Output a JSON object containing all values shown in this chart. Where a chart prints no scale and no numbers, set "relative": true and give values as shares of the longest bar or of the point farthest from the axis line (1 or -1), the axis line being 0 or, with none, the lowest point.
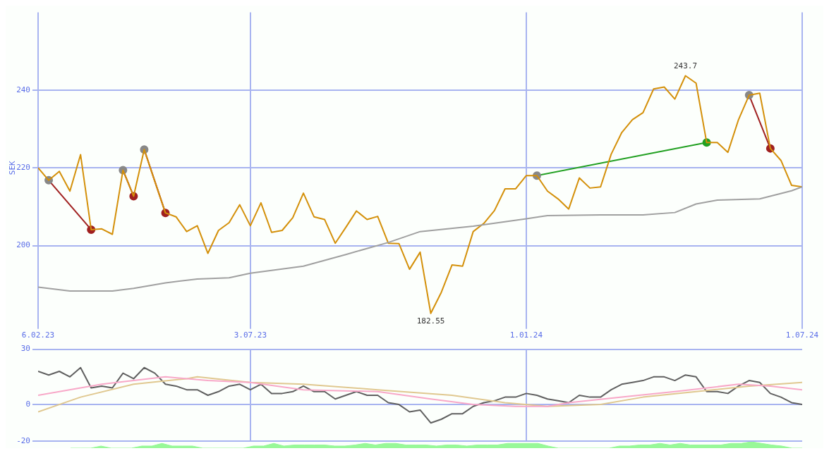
{
  "chart_data": [
    {
      "type": "line",
      "ylabel": "SEK",
      "x": [
        "2023-02-13",
        "2023-02-20",
        "2023-02-27",
        "2023-03-06",
        "2023-03-13",
        "2023-03-20",
        "2023-03-27",
        "2023-04-03",
        "2023-04-10",
        "2023-04-17",
        "2023-04-24",
        "2023-05-01",
        "2023-05-08",
        "2023-05-15",
        "2023-05-22",
        "2023-05-29",
        "2023-06-05",
        "2023-06-12",
        "2023-06-19",
        "2023-06-26",
        "2023-07-03",
        "2023-07-10",
        "2023-07-17",
        "2023-07-24",
        "2023-07-31",
        "2023-08-07",
        "2023-08-14",
        "2023-08-21",
        "2023-08-28",
        "2023-09-04",
        "2023-09-11",
        "2023-09-18",
        "2023-09-25",
        "2023-10-02",
        "2023-10-09",
        "2023-10-16",
        "2023-10-23",
        "2023-10-30",
        "2023-11-06",
        "2023-11-13",
        "2023-11-20",
        "2023-11-27",
        "2023-12-04",
        "2023-12-11",
        "2023-12-18",
        "2023-12-25",
        "2024-01-01",
        "2024-01-08",
        "2024-01-15",
        "2024-01-22",
        "2024-01-29",
        "2024-02-05",
        "2024-02-12",
        "2024-02-19",
        "2024-02-26",
        "2024-03-04",
        "2024-03-11",
        "2024-03-18",
        "2024-03-25",
        "2024-04-01",
        "2024-04-08",
        "2024-04-15",
        "2024-04-22",
        "2024-04-29",
        "2024-05-06",
        "2024-05-13",
        "2024-05-20",
        "2024-05-27",
        "2024-06-03",
        "2024-06-10",
        "2024-06-17",
        "2024-06-24",
        "2024-07-01"
      ],
      "series": [
        {
          "color": "#a0a0a0",
          "x": [
            "2023-02-13",
            "2023-03-06",
            "2023-04-03",
            "2023-04-17",
            "2023-05-08",
            "2023-05-29",
            "2023-06-19",
            "2023-07-03",
            "2023-08-07",
            "2023-09-04",
            "2023-10-02",
            "2023-10-23",
            "2023-11-27",
            "2024-01-01",
            "2024-01-15",
            "2024-02-19",
            "2024-03-18",
            "2024-04-08",
            "2024-04-22",
            "2024-05-06",
            "2024-06-03",
            "2024-06-24",
            "2024-07-01"
          ],
          "values": [
            189.3,
            188.3,
            188.3,
            189.0,
            190.4,
            191.4,
            191.7,
            192.9,
            194.7,
            197.7,
            200.8,
            203.6,
            205.0,
            206.9,
            207.7,
            207.9,
            207.9,
            208.5,
            210.7,
            211.7,
            212.0,
            214.1,
            215.1
          ]
        },
        {
          "color": "#d4900a",
          "values": [
            220.0,
            216.8,
            219.1,
            214.0,
            223.4,
            204.1,
            204.3,
            202.9,
            219.4,
            212.7,
            224.7,
            216.5,
            208.4,
            207.4,
            203.6,
            205.1,
            198.0,
            203.9,
            205.9,
            210.5,
            205.1,
            211.0,
            203.4,
            203.9,
            207.2,
            213.5,
            207.4,
            206.7,
            200.6,
            204.7,
            208.9,
            206.7,
            207.5,
            200.6,
            200.5,
            193.9,
            198.3,
            182.55,
            188.0,
            195.0,
            194.7,
            203.6,
            205.7,
            209.0,
            214.6,
            214.6,
            218.0,
            218.0,
            214.0,
            212.0,
            209.4,
            217.4,
            214.8,
            215.1,
            223.5,
            229.1,
            232.4,
            234.2,
            240.3,
            240.8,
            237.7,
            243.7,
            241.8,
            226.5,
            226.5,
            224.0,
            232.4,
            238.7,
            239.2,
            225.0,
            221.9,
            215.5,
            215.1
          ]
        },
        {
          "color": "#a02020",
          "marker": "circle",
          "colors": [
            "#888888",
            "#a02020"
          ],
          "x": [
            "2023-02-20",
            "2023-03-20"
          ],
          "values": [
            216.8,
            204.1
          ]
        },
        {
          "color": "#a02020",
          "marker": "circle",
          "colors": [
            "#888888",
            "#a02020"
          ],
          "x": [
            "2023-04-10",
            "2023-04-17"
          ],
          "values": [
            219.4,
            212.7
          ]
        },
        {
          "color": "#a02020",
          "marker": "circle",
          "colors": [
            "#888888",
            "#a02020"
          ],
          "x": [
            "2023-04-24",
            "2023-05-08"
          ],
          "values": [
            224.7,
            208.4
          ]
        },
        {
          "color": "#22a022",
          "marker": "circle",
          "colors": [
            "#888888",
            "#22a022"
          ],
          "x": [
            "2024-01-08",
            "2024-04-29"
          ],
          "values": [
            218.0,
            226.5
          ]
        },
        {
          "color": "#a02020",
          "marker": "circle",
          "colors": [
            "#888888",
            "#a02020"
          ],
          "x": [
            "2024-05-27",
            "2024-06-10"
          ],
          "values": [
            238.7,
            225.0
          ]
        }
      ],
      "xlim": [
        "2023-02-13",
        "2024-07-01"
      ],
      "xticks": [
        {
          "value": "2023-02-13",
          "label": "6.02.23"
        },
        {
          "value": "2023-07-03",
          "label": "3.07.23"
        },
        {
          "value": "2024-01-01",
          "label": "1.01.24"
        },
        {
          "value": "2024-07-01",
          "label": "1.07.24"
        }
      ],
      "ylim": [
        180,
        260
      ],
      "yticks": [
        200,
        220,
        240
      ],
      "grid": true,
      "marker": "none",
      "annotations": [
        {
          "text": "243.7",
          "x": "2024-04-15",
          "y": 243.7
        },
        {
          "text": "182.55",
          "x": "2023-10-30",
          "y": 182.55
        }
      ]
    },
    {
      "type": "line",
      "x": [
        "2023-02-13",
        "2023-02-20",
        "2023-02-27",
        "2023-03-06",
        "2023-03-13",
        "2023-03-20",
        "2023-03-27",
        "2023-04-03",
        "2023-04-10",
        "2023-04-17",
        "2023-04-24",
        "2023-05-01",
        "2023-05-08",
        "2023-05-15",
        "2023-05-22",
        "2023-05-29",
        "2023-06-05",
        "2023-06-12",
        "2023-06-19",
        "2023-06-26",
        "2023-07-03",
        "2023-07-10",
        "2023-07-17",
        "2023-07-24",
        "2023-07-31",
        "2023-08-07",
        "2023-08-14",
        "2023-08-21",
        "2023-08-28",
        "2023-09-04",
        "2023-09-11",
        "2023-09-18",
        "2023-09-25",
        "2023-10-02",
        "2023-10-09",
        "2023-10-16",
        "2023-10-23",
        "2023-10-30",
        "2023-11-06",
        "2023-11-13",
        "2023-11-20",
        "2023-11-27",
        "2023-12-04",
        "2023-12-11",
        "2023-12-18",
        "2023-12-25",
        "2024-01-01",
        "2024-01-08",
        "2024-01-15",
        "2024-01-22",
        "2024-01-29",
        "2024-02-05",
        "2024-02-12",
        "2024-02-19",
        "2024-02-26",
        "2024-03-04",
        "2024-03-11",
        "2024-03-18",
        "2024-03-25",
        "2024-04-01",
        "2024-04-08",
        "2024-04-15",
        "2024-04-22",
        "2024-04-29",
        "2024-05-06",
        "2024-05-13",
        "2024-05-20",
        "2024-05-27",
        "2024-06-03",
        "2024-06-10",
        "2024-06-17",
        "2024-06-24",
        "2024-07-01"
      ],
      "series": [
        {
          "color": "#f8a8c8",
          "x": [
            "2023-02-13",
            "2023-03-27",
            "2023-05-08",
            "2023-06-05",
            "2023-07-03",
            "2023-08-07",
            "2023-09-25",
            "2023-10-30",
            "2023-11-27",
            "2023-12-25",
            "2024-01-15",
            "2024-01-29",
            "2024-03-04",
            "2024-04-08",
            "2024-05-20",
            "2024-06-10",
            "2024-07-01"
          ],
          "values": [
            5,
            11,
            15,
            13,
            12,
            8,
            7,
            3,
            0,
            -1,
            -1,
            1,
            4,
            7,
            11,
            10,
            8
          ]
        },
        {
          "color": "#e0c890",
          "x": [
            "2023-02-13",
            "2023-03-13",
            "2023-04-17",
            "2023-05-22",
            "2023-05-29",
            "2023-07-03",
            "2023-08-07",
            "2023-09-25",
            "2023-11-13",
            "2023-12-18",
            "2024-01-15",
            "2024-02-19",
            "2024-03-18",
            "2024-04-22",
            "2024-05-27",
            "2024-07-01"
          ],
          "values": [
            -4,
            4,
            11,
            14,
            15,
            12,
            11,
            8,
            5,
            1,
            -1,
            0,
            4,
            7,
            10,
            12
          ]
        },
        {
          "color": "#606060",
          "values": [
            18,
            16,
            18,
            15,
            20,
            9,
            10,
            9,
            17,
            14,
            20,
            17,
            11,
            10,
            8,
            8,
            5,
            7,
            10,
            11,
            8,
            11,
            6,
            6,
            7,
            10,
            7,
            7,
            3,
            5,
            7,
            5,
            5,
            1,
            0,
            -4,
            -3,
            -10,
            -8,
            -5,
            -5,
            -1,
            1,
            2,
            4,
            4,
            6,
            5,
            3,
            2,
            1,
            5,
            4,
            4,
            8,
            11,
            12,
            13,
            15,
            15,
            13,
            16,
            15,
            7,
            7,
            6,
            10,
            13,
            12,
            6,
            4,
            1,
            0
          ]
        }
      ],
      "xlim": [
        "2023-02-13",
        "2024-07-01"
      ],
      "xticks": [
        {
          "value": "2023-07-03",
          "label": null
        },
        {
          "value": "2024-01-01",
          "label": null
        }
      ],
      "ylim": [
        -20,
        30
      ],
      "yticks": [
        -20,
        0,
        30
      ],
      "grid": true,
      "tick_labels": "y"
    },
    {
      "type": "area",
      "relative": true,
      "tick_labels": false,
      "color": "#98f898",
      "categories": [
        null,
        null,
        null,
        null,
        null,
        null,
        null,
        null,
        null,
        null,
        null,
        null,
        null,
        null,
        null,
        null,
        null,
        null,
        null,
        null,
        null,
        null,
        null,
        null,
        null,
        null,
        null,
        null,
        null,
        null,
        null,
        null,
        null,
        null,
        null,
        null,
        null,
        null,
        null,
        null,
        null,
        null,
        null,
        null,
        null,
        null,
        null,
        null,
        null,
        null,
        null,
        null,
        null,
        null,
        null,
        null,
        null,
        null,
        null,
        null,
        null,
        null,
        null,
        null,
        null,
        null,
        null,
        null,
        null,
        null,
        null,
        null,
        null
      ],
      "values": [
        0,
        0,
        0,
        0.33,
        0,
        0,
        0,
        0.33,
        0.33,
        0.75,
        0.33,
        0.33,
        0.33,
        0,
        0,
        0,
        0,
        0,
        0.33,
        0.33,
        0.75,
        0.33,
        0.5,
        0.5,
        0.5,
        0.5,
        0.33,
        0.33,
        0.5,
        0.75,
        0.5,
        0.75,
        0.75,
        0.5,
        0.5,
        0.5,
        0.33,
        0.5,
        0.5,
        0.33,
        0.5,
        0.5,
        0.5,
        0.75,
        0.75,
        0.75,
        0.75,
        0.33,
        0,
        0,
        0,
        0,
        0,
        0,
        0.33,
        0.33,
        0.5,
        0.5,
        0.75,
        0.5,
        0.75,
        0.5,
        0.5,
        0.5,
        0.5,
        0.75,
        0.75,
        1,
        0.75,
        0.5,
        0.33,
        0,
        0
      ]
    }
  ]
}
